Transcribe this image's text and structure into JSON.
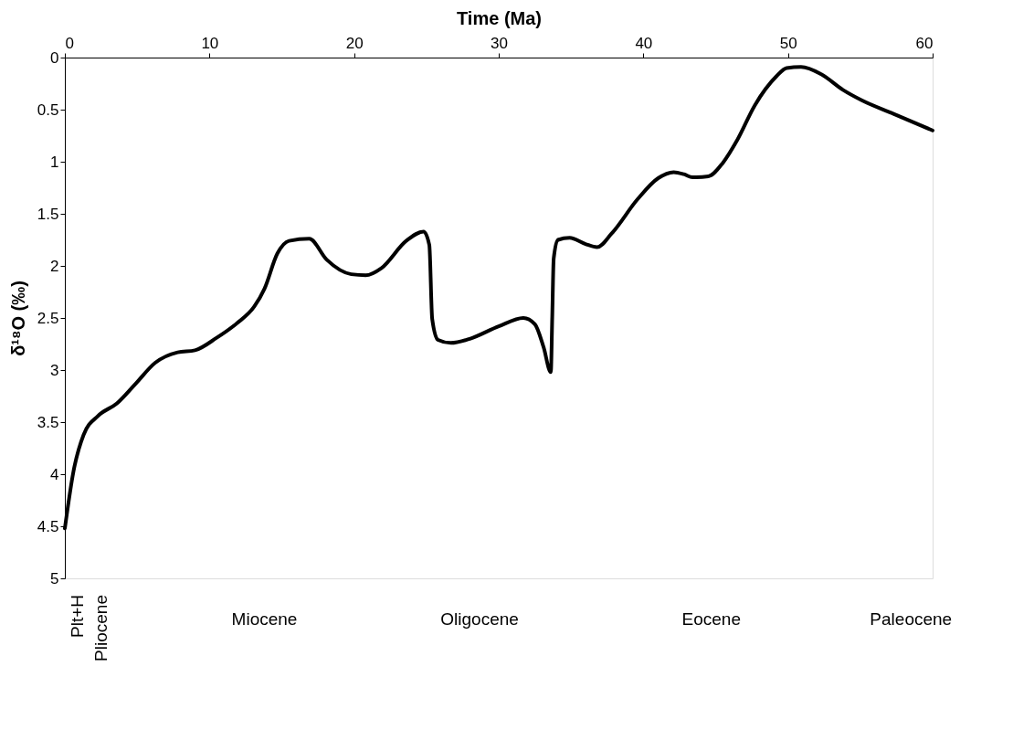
{
  "chart_data": {
    "type": "line",
    "xlabel": "Time (Ma)",
    "ylabel": "δ¹⁸O (‰)",
    "xlim": [
      0,
      60
    ],
    "xticks": [
      0,
      10,
      20,
      30,
      40,
      50,
      60
    ],
    "ylim": [
      5,
      0
    ],
    "yticks": [
      0,
      0.5,
      1,
      1.5,
      2,
      2.5,
      3,
      3.5,
      4,
      4.5,
      5
    ],
    "grid": false,
    "marker": "none",
    "line_style": "solid",
    "series": [
      {
        "color": "#000000",
        "x": [
          0,
          0.6,
          1.3,
          2.3,
          3.6,
          4.9,
          6.25,
          7.8,
          9.0,
          10.5,
          11.9,
          13.1,
          13.8,
          14.7,
          15.5,
          16.9,
          18.1,
          19.8,
          20.8,
          21.9,
          23.6,
          24.8,
          25.2,
          25.4,
          25.8,
          26.7,
          28.0,
          30.0,
          31.7,
          32.5,
          33.1,
          33.6,
          33.7,
          33.8,
          34.1,
          34.9,
          36.0,
          36.8,
          37.8,
          39.6,
          41.0,
          42.1,
          42.8,
          43.4,
          44.5,
          45.5,
          46.5,
          47.7,
          49.2,
          49.9,
          50.9,
          52.3,
          53.8,
          55.1,
          57.3,
          60
        ],
        "values": [
          4.52,
          3.97,
          3.62,
          3.44,
          3.32,
          3.13,
          2.93,
          2.83,
          2.81,
          2.69,
          2.55,
          2.39,
          2.22,
          1.88,
          1.76,
          1.74,
          1.94,
          2.08,
          2.09,
          2.02,
          1.76,
          1.67,
          1.8,
          2.51,
          2.71,
          2.74,
          2.7,
          2.58,
          2.5,
          2.56,
          2.78,
          3.02,
          2.49,
          1.93,
          1.75,
          1.73,
          1.79,
          1.82,
          1.69,
          1.36,
          1.16,
          1.1,
          1.12,
          1.15,
          1.14,
          1.01,
          0.79,
          0.46,
          0.18,
          0.1,
          0.09,
          0.16,
          0.31,
          0.41,
          0.54,
          0.7
        ]
      }
    ],
    "annotations": [
      "Plt+H",
      "Pliocene",
      "Miocene",
      "Oligocene",
      "Eocene",
      "Paleocene"
    ]
  }
}
